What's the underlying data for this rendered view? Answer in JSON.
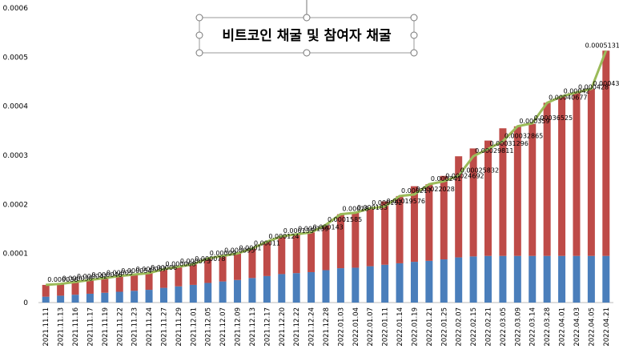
{
  "chart_data": {
    "type": "bar",
    "title": "비트코인 채굴 및 참여자 채굴",
    "categories": [
      "2021.11.11",
      "2021.11.13",
      "2021.11.16",
      "2021.11.17",
      "2021.11.19",
      "2021.11.22",
      "2021.11.23",
      "2021.11.24",
      "2021.11.27",
      "2021.11.29",
      "2021.12.01",
      "2021.12.05",
      "2021.12.07",
      "2021.12.09",
      "2021.12.13",
      "2021.12.17",
      "2021.12.20",
      "2021.12.22",
      "2021.12.24",
      "2021.12.28",
      "2022.01.03",
      "2022.01.04",
      "2022.01.07",
      "2022.01.11",
      "2022.01.14",
      "2022.01.19",
      "2022.01.21",
      "2022.01.25",
      "2022.02.07",
      "2022.02.15",
      "2022.02.21",
      "2022.03.05",
      "2022.03.09",
      "2022.03.14",
      "2022.03.28",
      "2022.04.01",
      "2022.04.03",
      "2022.04.05",
      "2022.04.21"
    ],
    "series": [
      {
        "color": "#4a7ebb",
        "values": [
          1.2e-05,
          1.4e-05,
          1.6e-05,
          1.8e-05,
          2e-05,
          2.2e-05,
          2.4e-05,
          2.6e-05,
          3e-05,
          3.3e-05,
          3.6e-05,
          4e-05,
          4.3e-05,
          4.6e-05,
          5e-05,
          5.4e-05,
          5.8e-05,
          6e-05,
          6.2e-05,
          6.6e-05,
          7e-05,
          7.1e-05,
          7.4e-05,
          7.7e-05,
          8e-05,
          8.3e-05,
          8.5e-05,
          8.8e-05,
          9.2e-05,
          9.4e-05,
          9.5e-05,
          9.5e-05,
          9.5e-05,
          9.5e-05,
          9.5e-05,
          9.5e-05,
          9.5e-05,
          9.5e-05,
          9.5e-05
        ]
      },
      {
        "color": "#be4b48",
        "values": [
          2.4e-05,
          2.4e-05,
          2.6e-05,
          2.8e-05,
          3e-05,
          3.2e-05,
          3.3e-05,
          3.4e-05,
          3.8e-05,
          4e-05,
          4.2e-05,
          5e-05,
          5.2e-05,
          5.4e-05,
          6e-05,
          7e-05,
          7.7e-05,
          7.9e-05,
          8.1e-05,
          9.1e-05,
          0.00011,
          0.000112,
          0.000118,
          0.000129,
          0.000137,
          0.000154,
          0.000156,
          0.00017,
          0.000206,
          0.00022,
          0.000235,
          0.00026,
          0.000264,
          0.000269,
          0.000312,
          0.000325,
          0.000333,
          0.00034,
          0.00041812
        ]
      },
      {
        "type": "line",
        "color": "#9bbb59",
        "values": [
          3.6e-05,
          3.8e-05,
          4.2e-05,
          4.6e-05,
          5e-05,
          5.4e-05,
          5.7e-05,
          6e-05,
          6.8e-05,
          7.3e-05,
          7.8e-05,
          9e-05,
          9.5e-05,
          0.0001,
          0.00011,
          0.000124,
          0.000135,
          0.000139,
          0.000143,
          0.0001585,
          0.00018,
          0.000183,
          0.000192,
          0.00019576,
          0.000217,
          0.00022028,
          0.000241,
          0.00024692,
          0.00025832,
          0.00029811,
          0.00031296,
          0.00032865,
          0.000359,
          0.00036525,
          0.00040677,
          0.00042,
          0.000428,
          0.00043531,
          0.00051312
        ]
      }
    ],
    "ylim": [
      0,
      0.0006
    ],
    "yticks": [
      0,
      0.0001,
      0.0002,
      0.0003,
      0.0004,
      0.0005,
      0.0006
    ]
  }
}
